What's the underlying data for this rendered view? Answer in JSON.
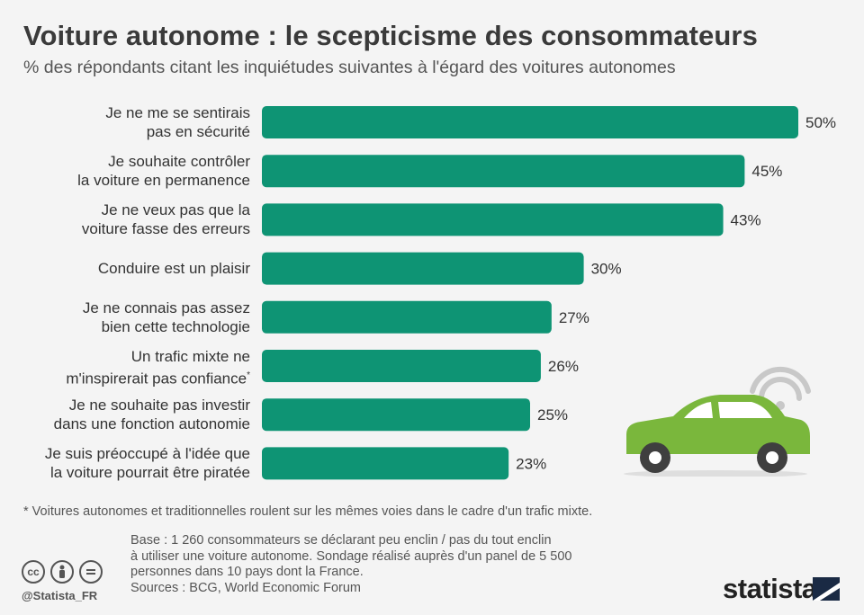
{
  "title": "Voiture autonome : le scepticisme des consommateurs",
  "subtitle": "% des répondants citant les inquiétudes suivantes à l'égard des voitures autonomes",
  "chart_data": {
    "type": "bar",
    "orientation": "horizontal",
    "categories": [
      [
        "Je ne me se sentirais",
        "pas en sécurité"
      ],
      [
        "Je souhaite contrôler",
        "la voiture en permanence"
      ],
      [
        "Je ne veux pas que la",
        "voiture fasse des erreurs"
      ],
      [
        "Conduire est un plaisir"
      ],
      [
        "Je ne connais pas assez",
        "bien cette technologie"
      ],
      [
        "Un trafic mixte ne",
        "m'inspirerait pas confiance*"
      ],
      [
        "Je ne souhaite pas investir",
        "dans une fonction autonomie"
      ],
      [
        "Je suis préoccupé à l'idée que",
        "la voiture pourrait être piratée"
      ]
    ],
    "values": [
      50,
      45,
      43,
      30,
      27,
      26,
      25,
      23
    ],
    "value_labels": [
      "50%",
      "45%",
      "43%",
      "30%",
      "27%",
      "26%",
      "25%",
      "23%"
    ],
    "xlim": [
      0,
      50
    ],
    "bar_color": "#0e9474",
    "grid": false
  },
  "footnote": "* Voitures autonomes et traditionnelles roulent sur les mêmes voies dans le cadre d'un trafic mixte.",
  "base_lines": [
    "Base : 1 260 consommateurs se déclarant peu enclin / pas du tout enclin",
    "à utiliser une voiture autonome. Sondage réalisé auprès d'un panel de 5 500",
    "personnes dans 10 pays dont la France."
  ],
  "sources": "Sources : BCG, World Economic Forum",
  "license_icons": [
    "cc",
    "by",
    "nd"
  ],
  "handle": "@Statista_FR",
  "brand": "statista",
  "colors": {
    "bar": "#0e9474",
    "car": "#7ab73c",
    "wifi": "#c8c8c8"
  }
}
